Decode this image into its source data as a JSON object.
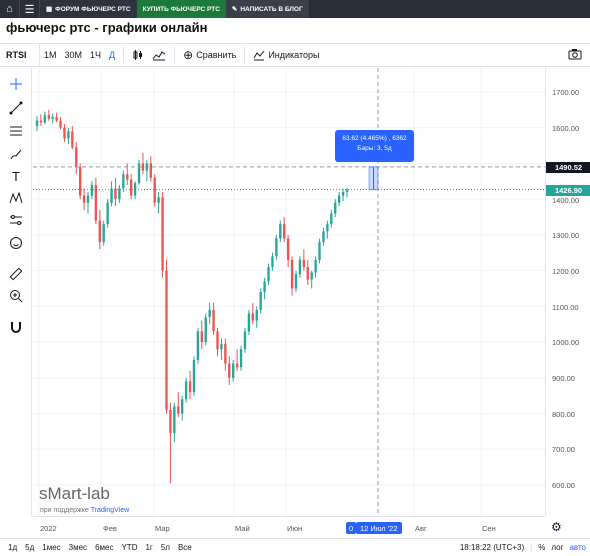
{
  "topnav": {
    "forum_label": "ФОРУМ ФЬЮЧЕРС РТС",
    "buy_label": "КУПИТЬ ФЬЮЧЕРС РТС",
    "blog_label": "НАПИСАТЬ В БЛОГ"
  },
  "page_title": "фьючерс ртс - графики онлайн",
  "toolbar": {
    "symbol": "RTSI",
    "timeframes": [
      "1М",
      "30М",
      "1Ч",
      "Д"
    ],
    "active_timeframe": "Д",
    "compare_label": "Сравнить",
    "indicators_label": "Индикаторы"
  },
  "left_tools": [
    "crosshair-icon",
    "trendline-icon",
    "fib-lines-icon",
    "brush-icon",
    "text-icon",
    "pattern-icon",
    "prediction-icon",
    "emoji-icon",
    "ruler-icon",
    "zoom-in-icon",
    "magnet-icon"
  ],
  "price_axis": {
    "labels": [
      "1700.00",
      "1600.00",
      "1400.00",
      "1300.00",
      "1200.00",
      "1100.00",
      "1000.00",
      "900.00",
      "800.00",
      "700.00",
      "600.00"
    ],
    "crosshair_price": "1490.52",
    "last_price": "1426.90"
  },
  "time_axis": {
    "labels": [
      "2022",
      "Фев",
      "Мар",
      "Май",
      "Июн",
      "Авг",
      "Сен"
    ],
    "crosshair_date": "12 Июл '22",
    "cursor_prefix": "0"
  },
  "tooltip": {
    "line1": "63.62 (4.465%) , 6362",
    "line2": "Бары: 3, 5д"
  },
  "watermark": {
    "brand": "sMart-lab",
    "powered_prefix": "при поддержке",
    "powered_link": "TradingView"
  },
  "bottombar": {
    "ranges": [
      "1д",
      "5д",
      "1мес",
      "3мес",
      "6мес",
      "YTD",
      "1г",
      "5л",
      "Все"
    ],
    "time": "18:18:22 (UTC+3)",
    "percent": "%",
    "log": "лог",
    "auto": "авто"
  },
  "colors": {
    "up": "#26a69a",
    "down": "#ef5350",
    "accent": "#2962ff",
    "last_price_tag": "#26a69a",
    "crosshair_tag": "#131722"
  },
  "chart_data": {
    "type": "candlestick",
    "ylim": [
      570,
      1760
    ],
    "last_price": 1426.9,
    "crosshair_price": 1490.52,
    "candles": [
      [
        1605,
        1632,
        1590,
        1620
      ],
      [
        1620,
        1638,
        1605,
        1615
      ],
      [
        1615,
        1645,
        1610,
        1635
      ],
      [
        1635,
        1650,
        1620,
        1625
      ],
      [
        1625,
        1640,
        1612,
        1630
      ],
      [
        1630,
        1642,
        1615,
        1620
      ],
      [
        1620,
        1630,
        1595,
        1600
      ],
      [
        1600,
        1610,
        1560,
        1570
      ],
      [
        1570,
        1600,
        1555,
        1590
      ],
      [
        1590,
        1605,
        1540,
        1545
      ],
      [
        1545,
        1560,
        1470,
        1490
      ],
      [
        1490,
        1500,
        1400,
        1410
      ],
      [
        1410,
        1430,
        1370,
        1390
      ],
      [
        1390,
        1420,
        1360,
        1410
      ],
      [
        1410,
        1450,
        1400,
        1440
      ],
      [
        1440,
        1460,
        1330,
        1340
      ],
      [
        1340,
        1370,
        1260,
        1280
      ],
      [
        1280,
        1340,
        1270,
        1330
      ],
      [
        1330,
        1400,
        1320,
        1390
      ],
      [
        1390,
        1450,
        1380,
        1430
      ],
      [
        1430,
        1460,
        1380,
        1400
      ],
      [
        1400,
        1440,
        1390,
        1430
      ],
      [
        1430,
        1480,
        1420,
        1470
      ],
      [
        1470,
        1500,
        1440,
        1455
      ],
      [
        1455,
        1470,
        1400,
        1410
      ],
      [
        1410,
        1450,
        1400,
        1445
      ],
      [
        1445,
        1510,
        1440,
        1500
      ],
      [
        1500,
        1530,
        1470,
        1480
      ],
      [
        1480,
        1510,
        1450,
        1500
      ],
      [
        1500,
        1520,
        1450,
        1460
      ],
      [
        1460,
        1470,
        1380,
        1390
      ],
      [
        1390,
        1420,
        1360,
        1405
      ],
      [
        1405,
        1420,
        1180,
        1200
      ],
      [
        1200,
        1230,
        800,
        810
      ],
      [
        810,
        830,
        605,
        745
      ],
      [
        745,
        830,
        720,
        820
      ],
      [
        820,
        860,
        790,
        800
      ],
      [
        800,
        850,
        780,
        840
      ],
      [
        840,
        900,
        830,
        890
      ],
      [
        890,
        920,
        840,
        860
      ],
      [
        860,
        960,
        850,
        950
      ],
      [
        950,
        1040,
        940,
        1030
      ],
      [
        1030,
        1060,
        980,
        1000
      ],
      [
        1000,
        1080,
        990,
        1070
      ],
      [
        1070,
        1110,
        1050,
        1090
      ],
      [
        1090,
        1110,
        1020,
        1030
      ],
      [
        1030,
        1040,
        960,
        980
      ],
      [
        980,
        1010,
        950,
        995
      ],
      [
        995,
        1010,
        920,
        940
      ],
      [
        940,
        960,
        880,
        900
      ],
      [
        900,
        950,
        890,
        940
      ],
      [
        940,
        980,
        920,
        930
      ],
      [
        930,
        990,
        920,
        980
      ],
      [
        980,
        1040,
        970,
        1030
      ],
      [
        1030,
        1090,
        1020,
        1080
      ],
      [
        1080,
        1110,
        1050,
        1060
      ],
      [
        1060,
        1100,
        1040,
        1090
      ],
      [
        1090,
        1150,
        1080,
        1140
      ],
      [
        1140,
        1180,
        1120,
        1170
      ],
      [
        1170,
        1220,
        1160,
        1210
      ],
      [
        1210,
        1250,
        1200,
        1240
      ],
      [
        1240,
        1300,
        1230,
        1290
      ],
      [
        1290,
        1340,
        1280,
        1330
      ],
      [
        1330,
        1350,
        1280,
        1290
      ],
      [
        1290,
        1300,
        1210,
        1230
      ],
      [
        1230,
        1240,
        1130,
        1150
      ],
      [
        1150,
        1200,
        1140,
        1190
      ],
      [
        1190,
        1240,
        1180,
        1230
      ],
      [
        1230,
        1260,
        1200,
        1210
      ],
      [
        1210,
        1230,
        1160,
        1175
      ],
      [
        1175,
        1200,
        1150,
        1195
      ],
      [
        1195,
        1240,
        1180,
        1230
      ],
      [
        1230,
        1290,
        1220,
        1280
      ],
      [
        1280,
        1320,
        1270,
        1310
      ],
      [
        1310,
        1340,
        1290,
        1330
      ],
      [
        1330,
        1370,
        1320,
        1360
      ],
      [
        1360,
        1400,
        1350,
        1390
      ],
      [
        1390,
        1420,
        1380,
        1410
      ],
      [
        1410,
        1430,
        1395,
        1420
      ],
      [
        1420,
        1432,
        1405,
        1427
      ]
    ]
  }
}
